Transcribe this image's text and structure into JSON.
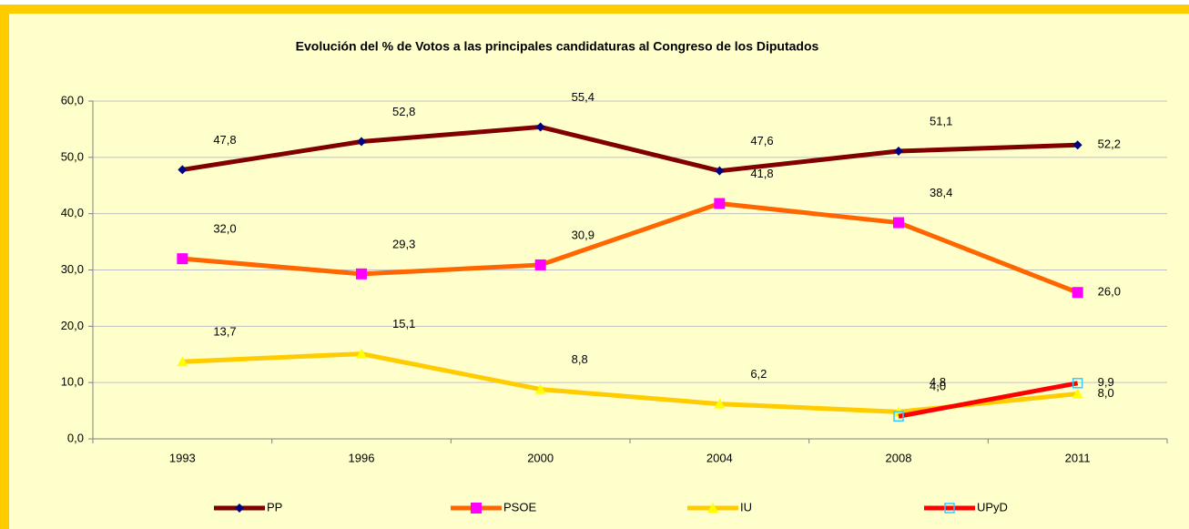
{
  "chart_data": {
    "type": "line",
    "title": "Evolución del % de Votos a las principales candidaturas al Congreso de los Diputados",
    "categories": [
      "1993",
      "1996",
      "2000",
      "2004",
      "2008",
      "2011"
    ],
    "series": [
      {
        "name": "PP",
        "color": "#800000",
        "marker": "diamond",
        "marker_color": "#000080",
        "values": [
          47.8,
          52.8,
          55.4,
          47.6,
          51.1,
          52.2
        ],
        "value_labels": [
          "47,8",
          "52,8",
          "55,4",
          "47,6",
          "51,1",
          "52,2"
        ]
      },
      {
        "name": "PSOE",
        "color": "#ff6600",
        "marker": "square",
        "marker_color": "#ff00ff",
        "values": [
          32.0,
          29.3,
          30.9,
          41.8,
          38.4,
          26.0
        ],
        "value_labels": [
          "32,0",
          "29,3",
          "30,9",
          "41,8",
          "38,4",
          "26,0"
        ]
      },
      {
        "name": "IU",
        "color": "#ffcc00",
        "marker": "triangle",
        "marker_color": "#ffff00",
        "values": [
          13.7,
          15.1,
          8.8,
          6.2,
          4.8,
          8.0
        ],
        "value_labels": [
          "13,7",
          "15,1",
          "8,8",
          "6,2",
          "4,8",
          "8,0"
        ]
      },
      {
        "name": "UPyD",
        "color": "#ff0000",
        "marker": "hollow-square",
        "marker_color": "#33ccff",
        "values": [
          null,
          null,
          null,
          null,
          4.0,
          9.9
        ],
        "value_labels": [
          null,
          null,
          null,
          null,
          "4,0",
          "9,9"
        ]
      }
    ],
    "ylim": [
      0,
      60
    ],
    "yticks": [
      {
        "value": 0,
        "label": "0,0"
      },
      {
        "value": 10,
        "label": "10,0"
      },
      {
        "value": 20,
        "label": "20,0"
      },
      {
        "value": 30,
        "label": "30,0"
      },
      {
        "value": 40,
        "label": "40,0"
      },
      {
        "value": 50,
        "label": "50,0"
      },
      {
        "value": 60,
        "label": "60,0"
      }
    ],
    "grid": true,
    "legend": "bottom"
  }
}
